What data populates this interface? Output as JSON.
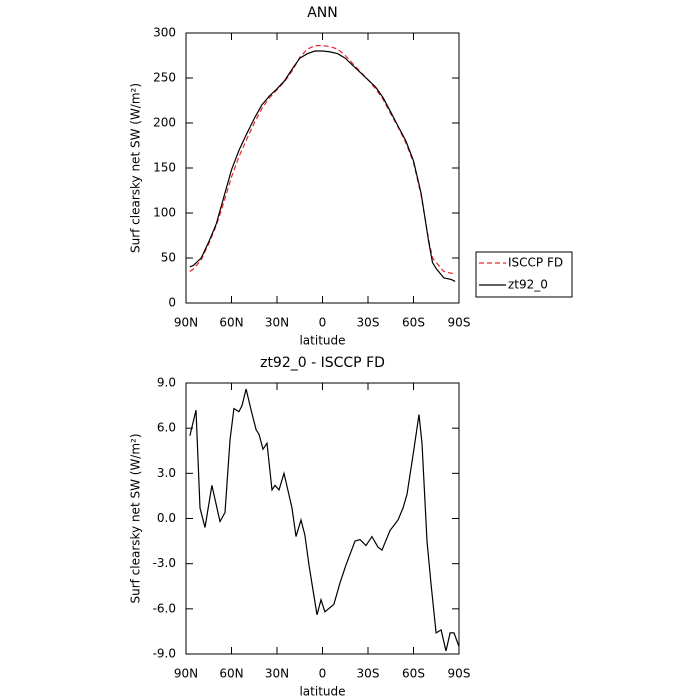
{
  "chart_data": [
    {
      "type": "line",
      "title": "ANN",
      "xlabel": "latitude",
      "ylabel": "Surf clearsky net SW (W/m²)",
      "x": [
        87.5,
        85,
        80,
        75,
        70,
        65,
        60,
        55,
        50,
        45,
        40,
        35,
        30,
        25,
        20,
        15,
        10,
        5,
        0,
        -5,
        -10,
        -15,
        -20,
        -25,
        -30,
        -35,
        -40,
        -45,
        -50,
        -55,
        -60,
        -65,
        -70,
        -72.5,
        -75,
        -80,
        -85,
        -87.5
      ],
      "series": [
        {
          "name": "ISCCP FD",
          "color": "#e8262a",
          "line_style": "dashed",
          "values": [
            35,
            38,
            48,
            66,
            86,
            112,
            140,
            163,
            182,
            200,
            216,
            228,
            237,
            246,
            258,
            273,
            282,
            286,
            286,
            285,
            282,
            275,
            266,
            257,
            248,
            238,
            226,
            210,
            195,
            178,
            156,
            120,
            70,
            50,
            45,
            35,
            33,
            33
          ]
        },
        {
          "name": "zt92_0",
          "color": "#000000",
          "line_style": "solid",
          "values": [
            40,
            42,
            50,
            68,
            88,
            118,
            148,
            170,
            188,
            205,
            220,
            230,
            238,
            247,
            260,
            272,
            277,
            280,
            280,
            279,
            277,
            272,
            264,
            256,
            248,
            240,
            228,
            212,
            196,
            180,
            158,
            122,
            68,
            45,
            38,
            28,
            26,
            24
          ]
        }
      ],
      "xlim": [
        90,
        -90
      ],
      "xticks": [
        {
          "value": 90,
          "label": "90N"
        },
        {
          "value": 60,
          "label": "60N"
        },
        {
          "value": 30,
          "label": "30N"
        },
        0,
        {
          "value": -30,
          "label": "30S"
        },
        {
          "value": -60,
          "label": "60S"
        },
        {
          "value": -90,
          "label": "90S"
        }
      ],
      "ylim": [
        0,
        300
      ],
      "yticks": [
        0,
        50,
        100,
        150,
        200,
        250,
        300
      ],
      "legend": "outside right"
    },
    {
      "type": "line",
      "title": "zt92_0 - ISCCP FD",
      "xlabel": "latitude",
      "ylabel": "Surf clearsky net SW (W/m²)",
      "x": [
        87.4,
        83.4,
        80.8,
        77.5,
        72.9,
        67.6,
        64.3,
        61,
        58.4,
        55.1,
        53.1,
        50.4,
        47.1,
        43.8,
        41.9,
        39.2,
        36.6,
        33.3,
        31.3,
        28.7,
        25.4,
        20.1,
        17.5,
        14.2,
        11.6,
        8.9,
        3.6,
        1,
        -1.6,
        -7.5,
        -11.5,
        -15.4,
        -21.4,
        -24.7,
        -28.7,
        -32.6,
        -36.6,
        -39.2,
        -44.5,
        -49.8,
        -53.1,
        -55.7,
        -59.7,
        -63.6,
        -65.6,
        -68.9,
        -71.6,
        -74.9,
        -78.2,
        -81.4,
        -84.1,
        -86.7,
        -90
      ],
      "values": [
        5.5,
        7.2,
        0.7,
        -0.6,
        2.2,
        -0.2,
        0.4,
        5.2,
        7.3,
        7.1,
        7.5,
        8.6,
        7.2,
        5.9,
        5.6,
        4.6,
        5.0,
        1.9,
        2.2,
        1.9,
        3.0,
        0.7,
        -1.2,
        -0.1,
        -1.1,
        -3.1,
        -6.4,
        -5.4,
        -6.2,
        -5.7,
        -4.3,
        -3.1,
        -1.5,
        -1.4,
        -1.8,
        -1.2,
        -1.9,
        -2.1,
        -0.8,
        -0.1,
        0.7,
        1.6,
        4.2,
        6.9,
        5.0,
        -1.5,
        -4.4,
        -7.6,
        -7.4,
        -8.8,
        -7.6,
        -7.6,
        -8.5
      ],
      "color": "#000000",
      "xlim": [
        90,
        -90
      ],
      "xticks": [
        {
          "value": 90,
          "label": "90N"
        },
        {
          "value": 60,
          "label": "60N"
        },
        {
          "value": 30,
          "label": "30N"
        },
        0,
        {
          "value": -30,
          "label": "30S"
        },
        {
          "value": -60,
          "label": "60S"
        },
        {
          "value": -90,
          "label": "90S"
        }
      ],
      "ylim": [
        -9,
        9
      ],
      "yticks": [
        {
          "value": -9,
          "label": "-9.0"
        },
        {
          "value": -6,
          "label": "-6.0"
        },
        {
          "value": -3,
          "label": "-3.0"
        },
        {
          "value": 0,
          "label": "0.0"
        },
        {
          "value": 3,
          "label": "3.0"
        },
        {
          "value": 6,
          "label": "6.0"
        },
        {
          "value": 9,
          "label": "9.0"
        }
      ]
    }
  ]
}
